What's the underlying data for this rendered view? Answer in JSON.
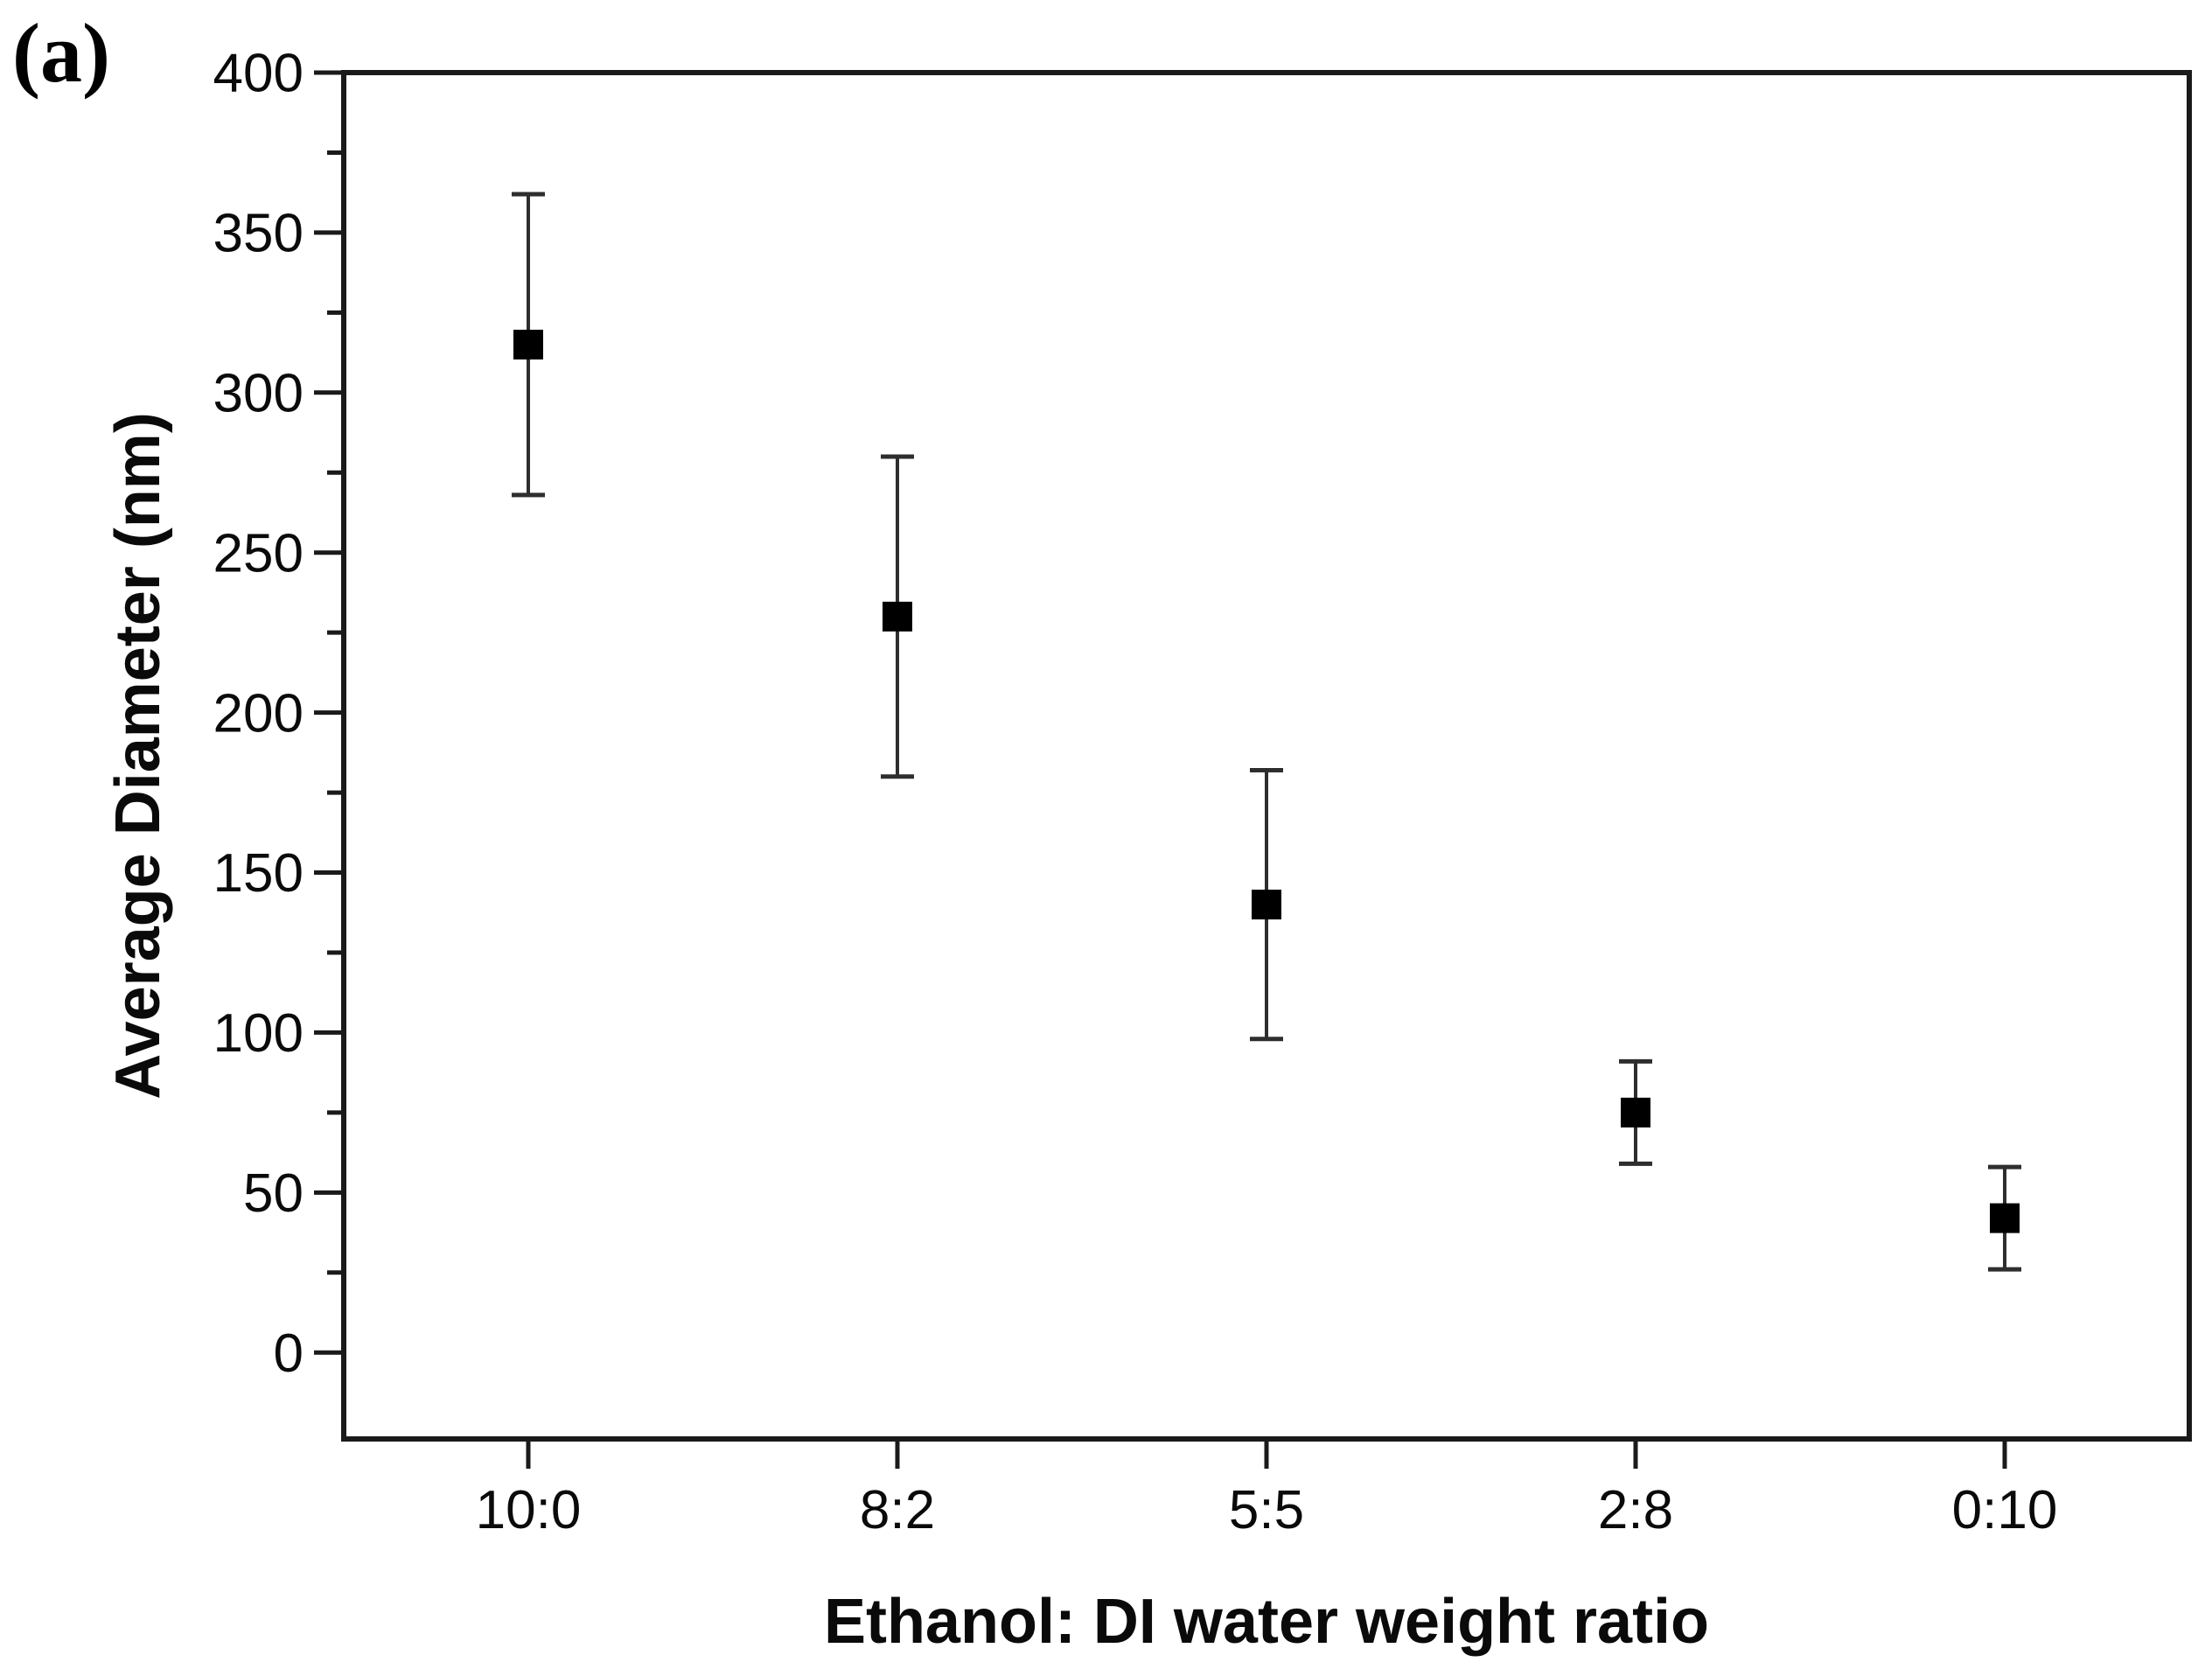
{
  "figure": {
    "panel_label": "(a)"
  },
  "chart_data": {
    "type": "scatter",
    "title": "",
    "xlabel": "Ethanol: DI water weight ratio",
    "ylabel": "Average Diameter (nm)",
    "categories": [
      "10:0",
      "8:2",
      "5:5",
      "2:8",
      "0:10"
    ],
    "series": [
      {
        "name": "Average diameter",
        "values": [
          315,
          230,
          140,
          75,
          42
        ],
        "error_plus": [
          47,
          50,
          42,
          16,
          16
        ],
        "error_minus": [
          47,
          50,
          42,
          16,
          16
        ]
      }
    ],
    "ylim": [
      -27,
      400
    ],
    "y_major_ticks": [
      400,
      350,
      300,
      250,
      200,
      150,
      100,
      50,
      0
    ],
    "y_minor_tick_step": 25,
    "marker": "square",
    "grid": false,
    "legend_position": "none",
    "colors": {
      "marker": "#000000",
      "error_bar": "#2e2e2e",
      "axis": "#1a1a1a",
      "text": "#0a0a0a"
    }
  }
}
